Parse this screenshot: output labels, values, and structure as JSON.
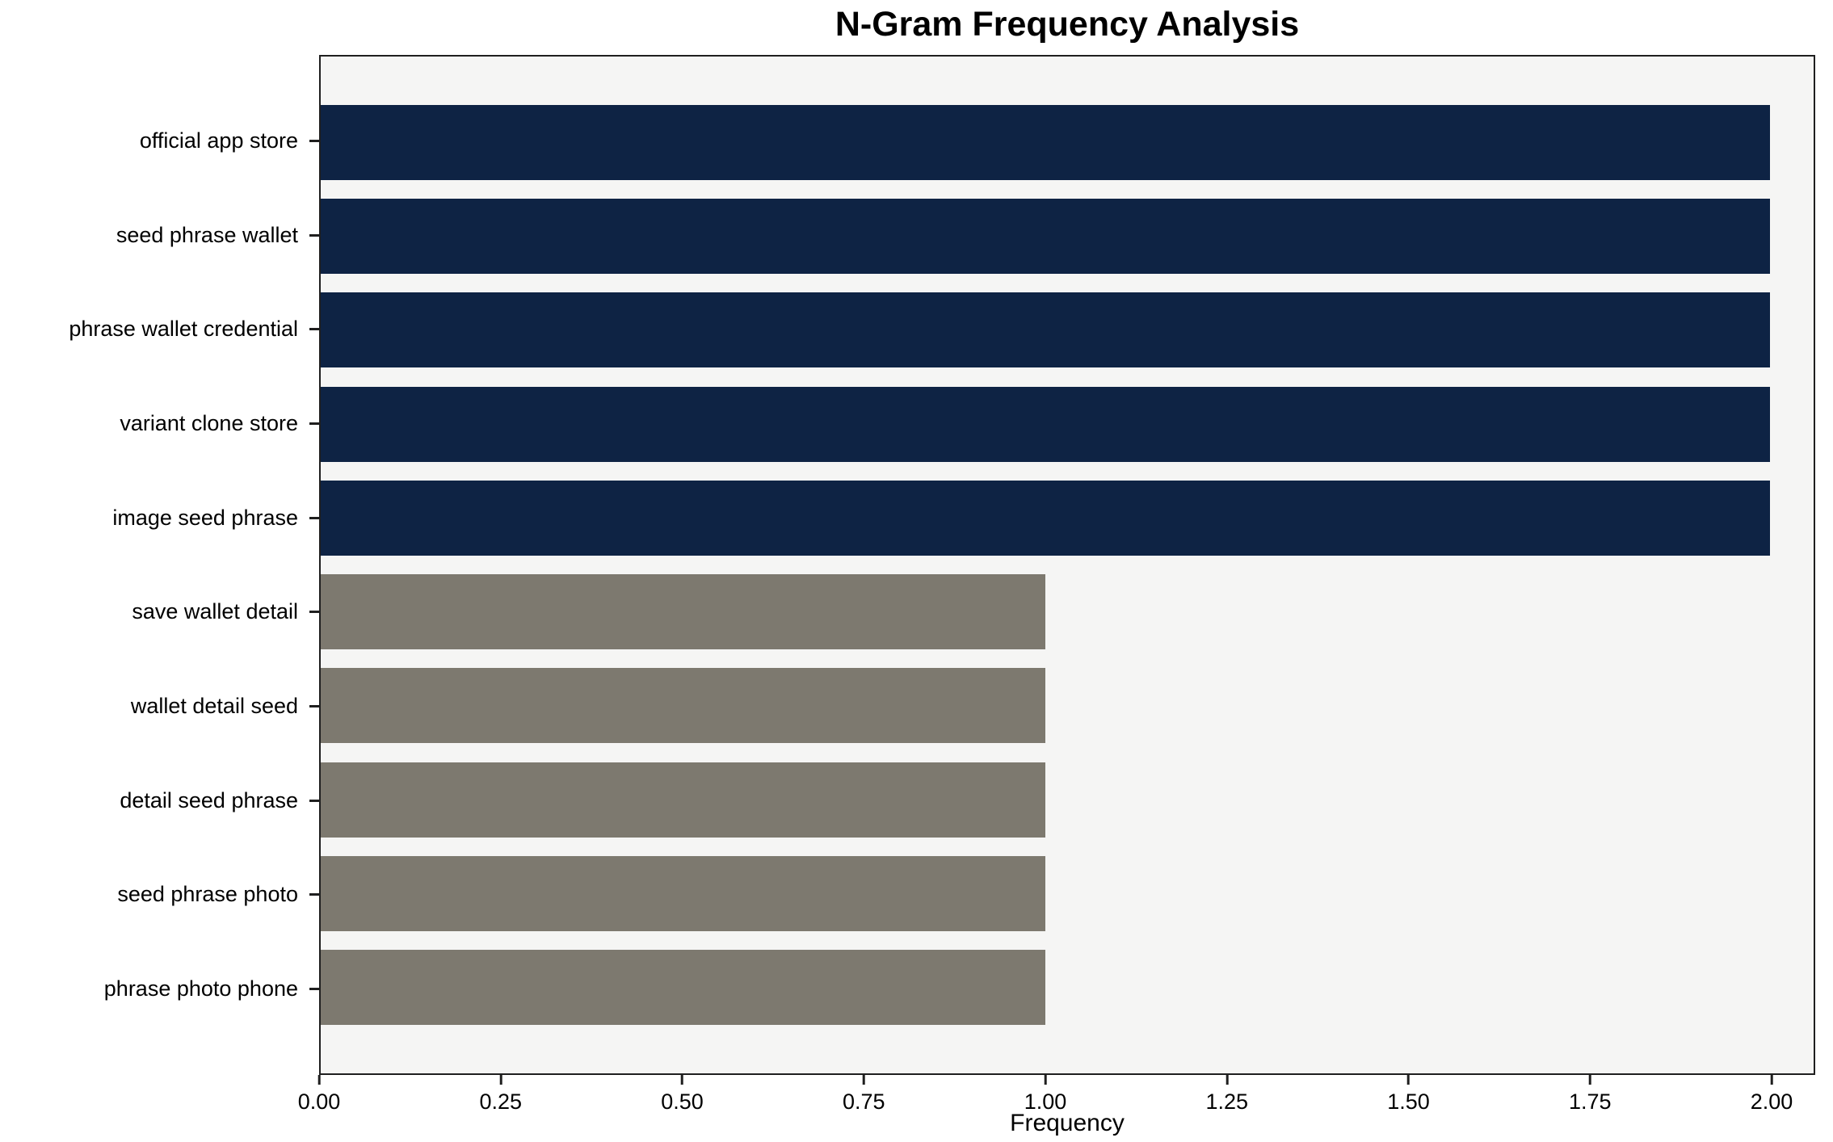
{
  "chart_data": {
    "type": "bar",
    "orientation": "horizontal",
    "title": "N-Gram Frequency Analysis",
    "xlabel": "Frequency",
    "ylabel": "",
    "categories": [
      "official app store",
      "seed phrase wallet",
      "phrase wallet credential",
      "variant clone store",
      "image seed phrase",
      "save wallet detail",
      "wallet detail seed",
      "detail seed phrase",
      "seed phrase photo",
      "phrase photo phone"
    ],
    "values": [
      2,
      2,
      2,
      2,
      2,
      1,
      1,
      1,
      1,
      1
    ],
    "bar_colors": [
      "#0e2344",
      "#0e2344",
      "#0e2344",
      "#0e2344",
      "#0e2344",
      "#7d796f",
      "#7d796f",
      "#7d796f",
      "#7d796f",
      "#7d796f"
    ],
    "xlim": [
      0,
      2.06
    ],
    "x_ticks": [
      0,
      0.25,
      0.5,
      0.75,
      1.0,
      1.25,
      1.5,
      1.75,
      2.0
    ],
    "x_tick_labels": [
      "0.00",
      "0.25",
      "0.50",
      "0.75",
      "1.00",
      "1.25",
      "1.50",
      "1.75",
      "2.00"
    ],
    "grid": false,
    "legend": "none",
    "plot_background": "#f5f5f4",
    "colors": {
      "frequency_2": "#0e2344",
      "frequency_1": "#7d796f"
    }
  }
}
